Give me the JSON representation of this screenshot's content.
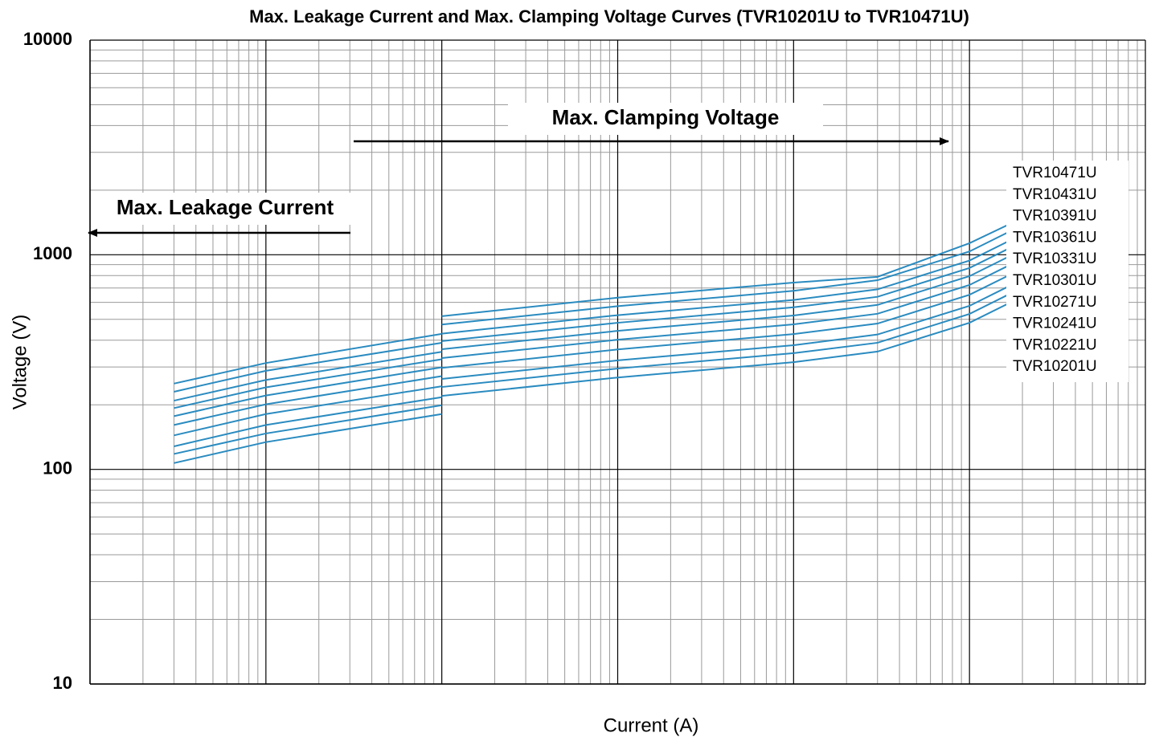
{
  "chart_data": {
    "type": "line",
    "title": "Max. Leakage Current and Max. Clamping Voltage Curves (TVR10201U to TVR10471U)",
    "xlabel": "Current (A)",
    "ylabel": "Voltage   (V)",
    "annotations": [
      "Max. Clamping Voltage",
      "Max. Leakage Current"
    ],
    "xscale": "log",
    "yscale": "log",
    "grid": true,
    "legend": "right",
    "color": "#2a8bc0",
    "xlim": [
      1e-06,
      1
    ],
    "ylim": [
      10,
      10000
    ],
    "xticks": [
      1e-06,
      1e-05,
      0.0001,
      0.001,
      0.01,
      0.1,
      1
    ],
    "yticks": [
      10,
      100,
      1000,
      10000
    ],
    "x": [
      3e-06,
      1e-05,
      0.0001,
      0.0001,
      0.0001,
      0.001,
      0.01,
      0.03,
      0.1,
      0.17
    ],
    "series": [
      {
        "name": "TVR10471U",
        "values": [
          251,
          313,
          428,
          null,
          517,
          631,
          742,
          789,
          1132,
          1393
        ]
      },
      {
        "name": "TVR10431U",
        "values": [
          230,
          288,
          389,
          null,
          473,
          576,
          679,
          761,
          1036,
          1286
        ]
      },
      {
        "name": "TVR10391U",
        "values": [
          209,
          261,
          353,
          null,
          429,
          523,
          616,
          690,
          940,
          1166
        ]
      },
      {
        "name": "TVR10361U",
        "values": [
          193,
          241,
          326,
          null,
          396,
          482,
          569,
          637,
          868,
          1076
        ]
      },
      {
        "name": "TVR10331U",
        "values": [
          177,
          221,
          299,
          null,
          363,
          442,
          521,
          584,
          795,
          987
        ]
      },
      {
        "name": "TVR10301U",
        "values": [
          161,
          201,
          272,
          null,
          330,
          402,
          474,
          531,
          723,
          897
        ]
      },
      {
        "name": "TVR10271U",
        "values": [
          144,
          181,
          244,
          null,
          297,
          362,
          427,
          478,
          651,
          807
        ]
      },
      {
        "name": "TVR10241U",
        "values": [
          128,
          161,
          217,
          null,
          264,
          322,
          379,
          425,
          578,
          718
        ]
      },
      {
        "name": "TVR10221U",
        "values": [
          118,
          147,
          199,
          null,
          242,
          295,
          348,
          389,
          530,
          658
        ]
      },
      {
        "name": "TVR10201U",
        "values": [
          107,
          134,
          181,
          null,
          220,
          268,
          316,
          354,
          482,
          598
        ]
      }
    ]
  }
}
